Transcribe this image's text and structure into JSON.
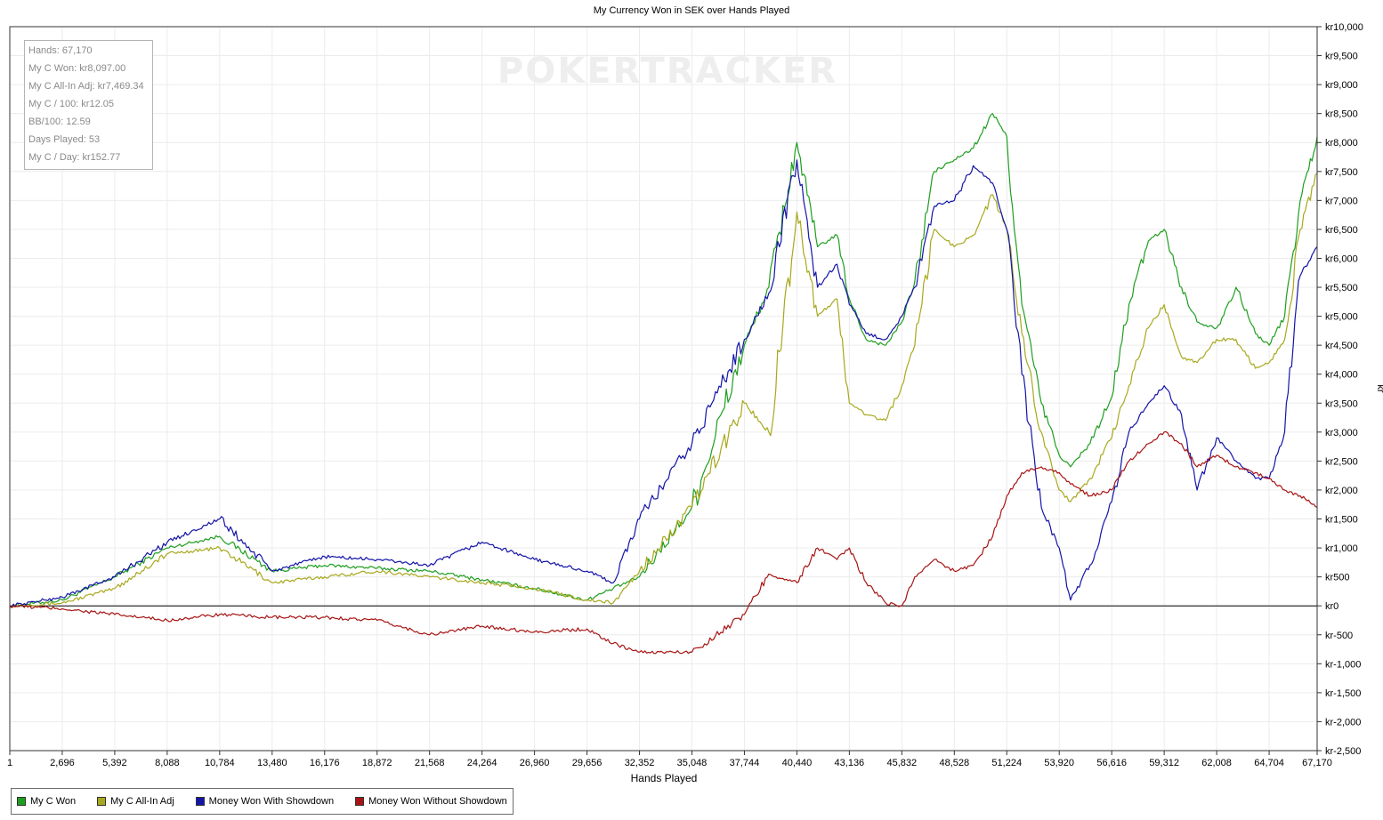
{
  "chart_data": {
    "type": "line",
    "title": "My Currency Won in SEK over Hands Played",
    "xlabel": "Hands Played",
    "ylabel": "kr",
    "xlim": [
      1,
      67170
    ],
    "ylim": [
      -2500,
      10000
    ],
    "grid": true,
    "legend_position": "bottom-left",
    "watermark": "POKERTRACKER",
    "x_ticks": [
      "1",
      "2,696",
      "5,392",
      "8,088",
      "10,784",
      "13,480",
      "16,176",
      "18,872",
      "21,568",
      "24,264",
      "26,960",
      "29,656",
      "32,352",
      "35,048",
      "37,744",
      "40,440",
      "43,136",
      "45,832",
      "48,528",
      "51,224",
      "53,920",
      "56,616",
      "59,312",
      "62,008",
      "64,704",
      "67,170"
    ],
    "x_tick_values": [
      1,
      2696,
      5392,
      8088,
      10784,
      13480,
      16176,
      18872,
      21568,
      24264,
      26960,
      29656,
      32352,
      35048,
      37744,
      40440,
      43136,
      45832,
      48528,
      51224,
      53920,
      56616,
      59312,
      62008,
      64704,
      67170
    ],
    "y_ticks": [
      "kr10,000",
      "kr9,500",
      "kr9,000",
      "kr8,500",
      "kr8,000",
      "kr7,500",
      "kr7,000",
      "kr6,500",
      "kr6,000",
      "kr5,500",
      "kr5,000",
      "kr4,500",
      "kr4,000",
      "kr3,500",
      "kr3,000",
      "kr2,500",
      "kr2,000",
      "kr1,500",
      "kr1,000",
      "kr500",
      "kr0",
      "kr-500",
      "kr-1,000",
      "kr-1,500",
      "kr-2,000",
      "kr-2,500"
    ],
    "y_tick_values": [
      10000,
      9500,
      9000,
      8500,
      8000,
      7500,
      7000,
      6500,
      6000,
      5500,
      5000,
      4500,
      4000,
      3500,
      3000,
      2500,
      2000,
      1500,
      1000,
      500,
      0,
      -500,
      -1000,
      -1500,
      -2000,
      -2500
    ],
    "series": [
      {
        "name": "My C Won",
        "color": "#1e9e1e",
        "x": [
          1,
          2696,
          5392,
          8088,
          10784,
          13480,
          16176,
          18872,
          21568,
          24264,
          26960,
          29656,
          31000,
          32352,
          35048,
          37744,
          39000,
          40440,
          41500,
          42500,
          43136,
          44000,
          45000,
          45832,
          46500,
          47500,
          48528,
          49500,
          50500,
          51224,
          52000,
          53000,
          53920,
          54500,
          55500,
          56616,
          57500,
          58500,
          59312,
          60200,
          61000,
          62008,
          63000,
          64000,
          64704,
          65500,
          66300,
          67170
        ],
        "y": [
          0,
          100,
          500,
          1000,
          1200,
          600,
          700,
          650,
          600,
          450,
          300,
          100,
          300,
          500,
          1700,
          4500,
          5500,
          8000,
          6200,
          6400,
          5300,
          4600,
          4500,
          4900,
          5600,
          7500,
          7700,
          7900,
          8500,
          8100,
          5200,
          3500,
          2600,
          2400,
          2800,
          3600,
          5200,
          6300,
          6500,
          5500,
          4900,
          4800,
          5500,
          4700,
          4500,
          5000,
          7000,
          8097
        ]
      },
      {
        "name": "My C All-In Adj",
        "color": "#a8a81e",
        "x": [
          1,
          2696,
          5392,
          8088,
          10784,
          13480,
          16176,
          18872,
          21568,
          24264,
          26960,
          29656,
          31000,
          32352,
          35048,
          37744,
          39000,
          40440,
          41500,
          42500,
          43136,
          44000,
          45000,
          45832,
          46500,
          47500,
          48528,
          49500,
          50500,
          51224,
          52000,
          53000,
          53920,
          54500,
          55500,
          56616,
          57500,
          58500,
          59312,
          60200,
          61000,
          62008,
          63000,
          64000,
          64704,
          65500,
          66300,
          67170
        ],
        "y": [
          0,
          50,
          300,
          900,
          1000,
          400,
          500,
          600,
          500,
          400,
          300,
          100,
          50,
          600,
          1700,
          3500,
          3000,
          6800,
          5000,
          5300,
          3500,
          3300,
          3200,
          3800,
          4500,
          6500,
          6200,
          6400,
          7100,
          6500,
          4700,
          3000,
          2000,
          1800,
          2200,
          2900,
          3800,
          4800,
          5200,
          4300,
          4200,
          4600,
          4600,
          4100,
          4200,
          4600,
          6500,
          7469.34
        ]
      },
      {
        "name": "Money Won With Showdown",
        "color": "#1414a8",
        "x": [
          1,
          2696,
          5392,
          8088,
          10784,
          13480,
          16176,
          18872,
          21568,
          24264,
          26960,
          29656,
          31000,
          32352,
          35048,
          37744,
          39000,
          40440,
          41500,
          42500,
          43136,
          44000,
          45000,
          45832,
          46500,
          47500,
          48528,
          49500,
          50500,
          51224,
          52000,
          53000,
          53920,
          54500,
          55500,
          56616,
          57500,
          58500,
          59312,
          60200,
          61000,
          62008,
          63000,
          64000,
          64704,
          65500,
          66300,
          67170
        ],
        "y": [
          0,
          150,
          500,
          1100,
          1500,
          600,
          850,
          800,
          700,
          1100,
          800,
          600,
          400,
          1500,
          2800,
          4600,
          5400,
          7700,
          5500,
          5900,
          5200,
          4700,
          4600,
          5000,
          5500,
          6900,
          7000,
          7600,
          7300,
          6500,
          4000,
          1700,
          1000,
          100,
          700,
          1800,
          3000,
          3500,
          3800,
          3300,
          2000,
          2900,
          2500,
          2200,
          2200,
          3000,
          5700,
          6200
        ]
      },
      {
        "name": "Money Won Without Showdown",
        "color": "#a81414",
        "x": [
          1,
          2696,
          5392,
          8088,
          10784,
          13480,
          16176,
          18872,
          21568,
          24264,
          26960,
          29656,
          31000,
          32352,
          35048,
          37744,
          39000,
          40440,
          41500,
          42500,
          43136,
          44000,
          45000,
          45832,
          46500,
          47500,
          48528,
          49500,
          50500,
          51224,
          52000,
          53000,
          53920,
          54500,
          55500,
          56616,
          57500,
          58500,
          59312,
          60200,
          61000,
          62008,
          63000,
          64000,
          64704,
          65500,
          66300,
          67170
        ],
        "y": [
          0,
          -50,
          -150,
          -250,
          -150,
          -200,
          -200,
          -250,
          -500,
          -350,
          -450,
          -400,
          -650,
          -800,
          -800,
          -150,
          550,
          400,
          1000,
          800,
          1000,
          400,
          50,
          0,
          500,
          800,
          600,
          700,
          1200,
          1900,
          2300,
          2400,
          2300,
          2100,
          1900,
          2000,
          2500,
          2800,
          3000,
          2800,
          2400,
          2600,
          2400,
          2300,
          2200,
          2000,
          1900,
          1700
        ]
      }
    ]
  },
  "stats_box": [
    "Hands: 67,170",
    "My C Won: kr8,097.00",
    "My C All-In Adj: kr7,469.34",
    "My C / 100: kr12.05",
    "BB/100: 12.59",
    "Days Played: 53",
    "My C / Day: kr152.77"
  ],
  "legend": [
    {
      "label": "My C Won",
      "color": "#1e9e1e"
    },
    {
      "label": "My C All-In Adj",
      "color": "#a8a81e"
    },
    {
      "label": "Money Won With Showdown",
      "color": "#1414a8"
    },
    {
      "label": "Money Won Without Showdown",
      "color": "#a81414"
    }
  ]
}
